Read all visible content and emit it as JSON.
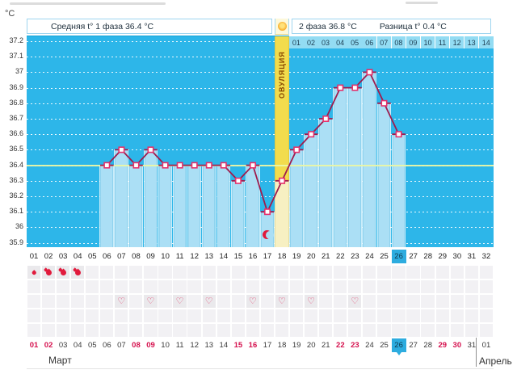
{
  "unit_label": "°C",
  "header": {
    "phase1_avg_label": "Средняя t° 1 фаза 36.4 °C",
    "phase2_avg_label": "2 фаза 36.8 °C",
    "diff_label": "Разница t° 0.4 °C"
  },
  "ovulation": {
    "label": "ОВУЛЯЦИЯ",
    "day": 18
  },
  "chart_data": {
    "type": "bar",
    "title": "Basal temperature cycle chart",
    "ylabel": "°C",
    "ylim": [
      35.9,
      37.2
    ],
    "yticks": [
      "37.2",
      "37.1",
      "37",
      "36.9",
      "36.8",
      "36.7",
      "36.6",
      "36.5",
      "36.4",
      "36.3",
      "36.2",
      "36.1",
      "36",
      "35.9"
    ],
    "x_day_count": 32,
    "avg_line_value": 36.4,
    "phase1_avg": 36.4,
    "phase2_avg": 36.8,
    "difference": 0.4,
    "ovulation_day": 18,
    "ovulation_day_temp": 36.3,
    "moon_day": 17,
    "points": [
      {
        "day": 6,
        "temp": 36.4
      },
      {
        "day": 7,
        "temp": 36.5
      },
      {
        "day": 8,
        "temp": 36.4
      },
      {
        "day": 9,
        "temp": 36.5
      },
      {
        "day": 10,
        "temp": 36.4
      },
      {
        "day": 11,
        "temp": 36.4
      },
      {
        "day": 12,
        "temp": 36.4
      },
      {
        "day": 13,
        "temp": 36.4
      },
      {
        "day": 14,
        "temp": 36.4
      },
      {
        "day": 15,
        "temp": 36.3
      },
      {
        "day": 16,
        "temp": 36.4
      },
      {
        "day": 17,
        "temp": 36.1
      },
      {
        "day": 18,
        "temp": 36.3
      },
      {
        "day": 19,
        "temp": 36.5
      },
      {
        "day": 20,
        "temp": 36.6
      },
      {
        "day": 21,
        "temp": 36.7
      },
      {
        "day": 22,
        "temp": 36.9
      },
      {
        "day": 23,
        "temp": 36.9
      },
      {
        "day": 24,
        "temp": 37.0
      },
      {
        "day": 25,
        "temp": 36.8
      },
      {
        "day": 26,
        "temp": 36.6
      }
    ]
  },
  "top_axis": {
    "start_day": 19,
    "labels": [
      "01",
      "02",
      "03",
      "04",
      "05",
      "06",
      "07",
      "08",
      "09",
      "10",
      "11",
      "12",
      "13",
      "14"
    ]
  },
  "bottom_axis": {
    "labels": [
      "01",
      "02",
      "03",
      "04",
      "05",
      "06",
      "07",
      "08",
      "09",
      "10",
      "11",
      "12",
      "13",
      "14",
      "15",
      "16",
      "17",
      "18",
      "19",
      "20",
      "21",
      "22",
      "23",
      "24",
      "25",
      "26",
      "27",
      "28",
      "29",
      "30",
      "31",
      "32"
    ],
    "selected_day": 26
  },
  "symbols": {
    "row_count": 5,
    "menstruation_row": 0,
    "intimacy_row": 2,
    "menstruation_days": [
      {
        "day": 1,
        "size": "small"
      },
      {
        "day": 2,
        "size": "large"
      },
      {
        "day": 3,
        "size": "large"
      },
      {
        "day": 4,
        "size": "large"
      }
    ],
    "intimacy_days": [
      7,
      9,
      11,
      13,
      16,
      18,
      20,
      23
    ],
    "intimacy_glyph": "♡"
  },
  "calendar": {
    "march_label": "Март",
    "april_label": "Апрель",
    "march_days": [
      "01",
      "02",
      "03",
      "04",
      "05",
      "06",
      "07",
      "08",
      "09",
      "10",
      "11",
      "12",
      "13",
      "14",
      "15",
      "16",
      "17",
      "18",
      "19",
      "20",
      "21",
      "22",
      "23",
      "24",
      "25",
      "26",
      "27",
      "28",
      "29",
      "30",
      "31"
    ],
    "april_first_day": "01",
    "weekend_days": [
      1,
      2,
      8,
      9,
      15,
      16,
      22,
      23,
      29,
      30
    ],
    "selected_day": 26
  },
  "colors": {
    "chart_bg": "#2db6e9",
    "bar_fill": "#abdff5",
    "band_yellow": "#f2dc4d",
    "band_cream": "#f7f0c2",
    "curve_line": "#9e1c4e",
    "marker_stroke": "#e5316b",
    "avg_line": "#e9f6a6",
    "selected_cell": "#2dacdf",
    "weekend_text": "#d5114e",
    "menstruation": "#e11a3c",
    "intimacy": "#e23a67"
  }
}
